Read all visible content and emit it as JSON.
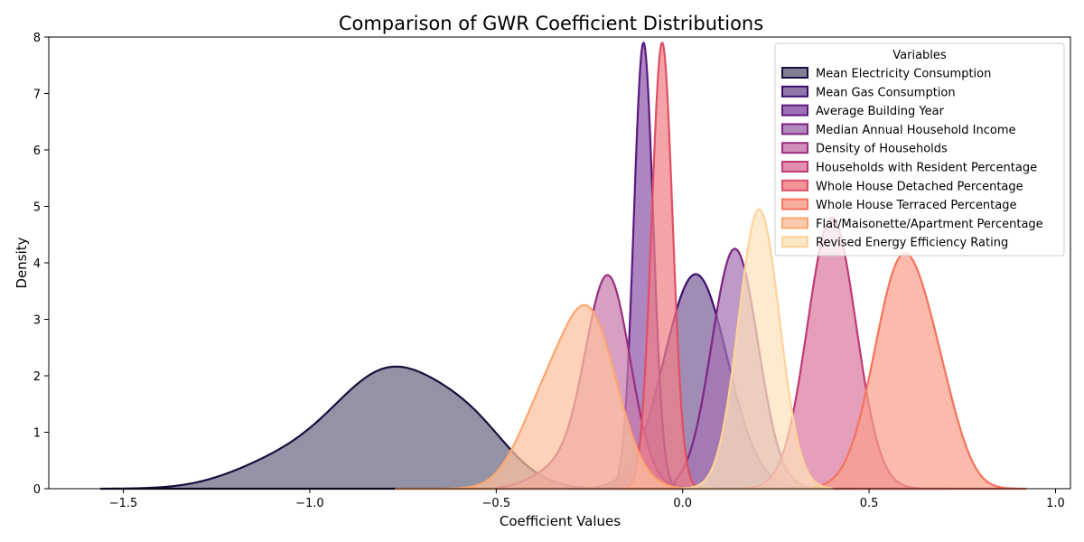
{
  "chart_data": {
    "type": "area",
    "title": "Comparison of GWR Coefficient Distributions",
    "xlabel": "Coefficient Values",
    "ylabel": "Density",
    "xlim": [
      -1.7,
      1.04
    ],
    "ylim": [
      0,
      8
    ],
    "x_ticks": [
      -1.5,
      -1.0,
      -0.5,
      0.0,
      0.5,
      1.0
    ],
    "x_tick_labels": [
      "−1.5",
      "−1.0",
      "−0.5",
      "0.0",
      "0.5",
      "1.0"
    ],
    "y_ticks": [
      0,
      1,
      2,
      3,
      4,
      5,
      6,
      7,
      8
    ],
    "y_tick_labels": [
      "0",
      "1",
      "2",
      "3",
      "4",
      "5",
      "6",
      "7",
      "8"
    ],
    "grid": false,
    "legend_title": "Variables",
    "legend_position": "top-right",
    "series": [
      {
        "name": "Mean Electricity Consumption",
        "color": "#180f3d",
        "range": [
          -1.56,
          -0.22
        ],
        "components": [
          {
            "mu": -0.78,
            "sigma": 0.16,
            "amp": 2.1
          },
          {
            "mu": -1.1,
            "sigma": 0.13,
            "amp": 0.35
          },
          {
            "mu": -0.55,
            "sigma": 0.1,
            "amp": 0.6
          }
        ]
      },
      {
        "name": "Mean Gas Consumption",
        "color": "#440f76",
        "range": [
          -0.3,
          0.38
        ],
        "components": [
          {
            "mu": 0.035,
            "sigma": 0.085,
            "amp": 3.8
          }
        ]
      },
      {
        "name": "Average Building Year",
        "color": "#721f81",
        "range": [
          -0.22,
          0.01
        ],
        "components": [
          {
            "mu": -0.105,
            "sigma": 0.026,
            "amp": 7.9
          }
        ]
      },
      {
        "name": "Median Annual Household Income",
        "color": "#9e2f7f",
        "range": [
          -0.02,
          0.46
        ],
        "components": [
          {
            "mu": 0.14,
            "sigma": 0.062,
            "amp": 4.25
          }
        ]
      },
      {
        "name": "Density of Households",
        "color": "#cd4071",
        "range": [
          -0.5,
          0.22
        ],
        "components": [
          {
            "mu": -0.2,
            "sigma": 0.06,
            "amp": 3.72
          },
          {
            "mu": -0.33,
            "sigma": 0.07,
            "amp": 0.35
          }
        ]
      },
      {
        "name": "Households with Resident Percentage",
        "color": "#cd4071",
        "range": [
          0.08,
          0.72
        ],
        "components": [
          {
            "mu": 0.4,
            "sigma": 0.065,
            "amp": 4.8
          }
        ]
      },
      {
        "name": "Whole House Detached Percentage",
        "color": "#f1605d",
        "range": [
          -0.17,
          0.06
        ],
        "components": [
          {
            "mu": -0.055,
            "sigma": 0.028,
            "amp": 7.9
          }
        ]
      },
      {
        "name": "Whole House Terraced Percentage",
        "color": "#fd9668",
        "range": [
          0.3,
          0.92
        ],
        "components": [
          {
            "mu": 0.59,
            "sigma": 0.075,
            "amp": 4.05
          },
          {
            "mu": 0.7,
            "sigma": 0.055,
            "amp": 0.8
          }
        ]
      },
      {
        "name": "Flat/Maisonette/Apartment Percentage",
        "color": "#feca8d",
        "range": [
          -0.77,
          0.08
        ],
        "components": [
          {
            "mu": -0.25,
            "sigma": 0.075,
            "amp": 3.0
          },
          {
            "mu": -0.38,
            "sigma": 0.07,
            "amp": 1.2
          }
        ]
      },
      {
        "name": "Revised Energy Efficiency Rating",
        "color": "#fcfdbf",
        "range": [
          0.0,
          0.4
        ],
        "components": [
          {
            "mu": 0.205,
            "sigma": 0.055,
            "amp": 4.95
          }
        ]
      }
    ]
  },
  "style": {
    "fill_colors": [
      "#6a6a82",
      "#7d5f9a",
      "#8d57a9",
      "#a373b2",
      "#c87bab",
      "#dd7aa0",
      "#f08088",
      "#fa9f8c",
      "#fdc09d",
      "#fde2bb"
    ],
    "edge_colors": [
      "#180f3d",
      "#3b0f70",
      "#5c1a80",
      "#7e2482",
      "#9c2e7f",
      "#c03a76",
      "#e04f64",
      "#f6735c",
      "#fca66f",
      "#fdd49a"
    ]
  }
}
